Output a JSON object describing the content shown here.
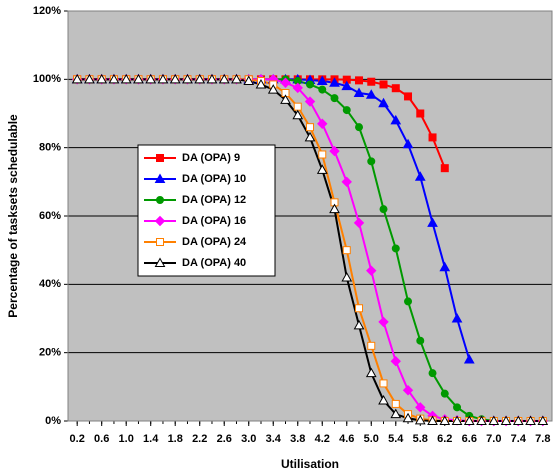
{
  "chart_data": {
    "type": "line",
    "x_label": "Utilisation",
    "y_label": "Percentage of tasksets schedulable",
    "x": [
      0.2,
      0.4,
      0.6,
      0.8,
      1.0,
      1.2,
      1.4,
      1.6,
      1.8,
      2.0,
      2.2,
      2.4,
      2.6,
      2.8,
      3.0,
      3.2,
      3.4,
      3.6,
      3.8,
      4.0,
      4.2,
      4.4,
      4.6,
      4.8,
      5.0,
      5.2,
      5.4,
      5.6,
      5.8,
      6.0,
      6.2,
      6.4,
      6.6,
      6.8,
      7.0,
      7.2,
      7.4,
      7.6,
      7.8
    ],
    "xlim": [
      0.05,
      7.95
    ],
    "xticks": [
      0.2,
      0.6,
      {
        "value": 1,
        "label": "1.0"
      },
      1.4,
      1.8,
      2.2,
      2.6,
      {
        "value": 3,
        "label": "3.0"
      },
      3.4,
      3.8,
      4.2,
      4.6,
      {
        "value": 5,
        "label": "5.0"
      },
      5.4,
      5.8,
      6.2,
      6.6,
      {
        "value": 7,
        "label": "7.0"
      },
      7.4,
      7.8
    ],
    "ylim": [
      0,
      120
    ],
    "yticks": [
      {
        "value": 0,
        "label": "0%"
      },
      {
        "value": 20,
        "label": "20%"
      },
      {
        "value": 40,
        "label": "40%"
      },
      {
        "value": 60,
        "label": "60%"
      },
      {
        "value": 80,
        "label": "80%"
      },
      {
        "value": 100,
        "label": "100%"
      },
      {
        "value": 120,
        "label": "120%"
      }
    ],
    "grid": true,
    "plot_background": "#c0c0c0",
    "legend": "left",
    "series": [
      {
        "name": "DA (OPA) 9",
        "color": "#ff0000",
        "marker": "square",
        "filled": true,
        "values": [
          100,
          100,
          100,
          100,
          100,
          100,
          100,
          100,
          100,
          100,
          100,
          100,
          100,
          100,
          100,
          100,
          100,
          100,
          100,
          100,
          100,
          100,
          99.9,
          99.7,
          99.3,
          98.5,
          97.4,
          95,
          90,
          83,
          74,
          null,
          null,
          null,
          null,
          null,
          null,
          null,
          null
        ]
      },
      {
        "name": "DA (OPA) 10",
        "color": "#0000ff",
        "marker": "triangle",
        "filled": true,
        "values": [
          100,
          100,
          100,
          100,
          100,
          100,
          100,
          100,
          100,
          100,
          100,
          100,
          100,
          100,
          100,
          100,
          100,
          100,
          100,
          99.8,
          99.5,
          99,
          98,
          96,
          95.5,
          93,
          88,
          81,
          71.5,
          58,
          45,
          30,
          18,
          null,
          null,
          null,
          null,
          null,
          null
        ]
      },
      {
        "name": "DA (OPA) 12",
        "color": "#009900",
        "marker": "circle",
        "filled": true,
        "values": [
          100,
          100,
          100,
          100,
          100,
          100,
          100,
          100,
          100,
          100,
          100,
          100,
          100,
          100,
          100,
          100,
          100,
          100,
          99.5,
          98.5,
          97,
          94.5,
          91,
          86,
          76,
          62,
          50.5,
          35,
          23.5,
          14,
          8,
          4,
          1.5,
          0.5,
          0,
          0,
          0,
          0,
          0
        ]
      },
      {
        "name": "DA (OPA) 16",
        "color": "#ff00ff",
        "marker": "diamond",
        "filled": true,
        "values": [
          100,
          100,
          100,
          100,
          100,
          100,
          100,
          100,
          100,
          100,
          100,
          100,
          100,
          100,
          100,
          100,
          100,
          99,
          97.5,
          93.5,
          87,
          79,
          70,
          58,
          44,
          29,
          17.5,
          9,
          4,
          1.5,
          0.5,
          0.2,
          0,
          0,
          0,
          0,
          0,
          0,
          0
        ]
      },
      {
        "name": "DA (OPA) 24",
        "color": "#ff8000",
        "marker": "square",
        "filled": false,
        "values": [
          100,
          100,
          100,
          100,
          100,
          100,
          100,
          100,
          100,
          100,
          100,
          100,
          100,
          100,
          100,
          99.5,
          98.5,
          96,
          92,
          86,
          78,
          64,
          50,
          33,
          22,
          11,
          5,
          2,
          0.7,
          0.2,
          0,
          0,
          0,
          0,
          0,
          0,
          0,
          0,
          0
        ]
      },
      {
        "name": "DA (OPA) 40",
        "color": "#000000",
        "marker": "triangle",
        "filled": false,
        "values": [
          100,
          100,
          100,
          100,
          100,
          100,
          100,
          100,
          100,
          100,
          100,
          100,
          100,
          100,
          99.5,
          98.5,
          97,
          94,
          89.5,
          83,
          73.5,
          62,
          42,
          28,
          14,
          6,
          2,
          0.8,
          0.2,
          0,
          0,
          0,
          0,
          0,
          0,
          0,
          0,
          0,
          0
        ]
      }
    ]
  }
}
